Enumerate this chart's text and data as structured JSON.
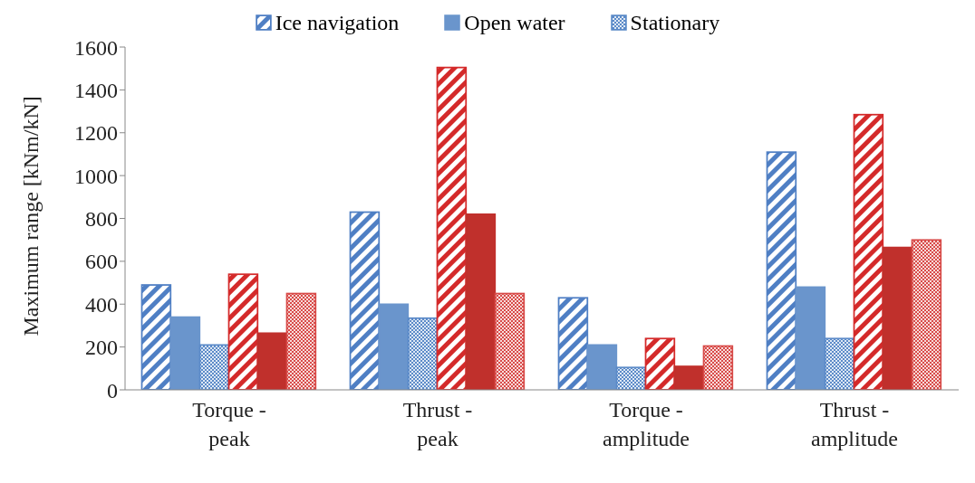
{
  "chart_data": {
    "type": "bar",
    "ylabel": "Maximum range [kNm/kN]",
    "categories": [
      "Torque - peak",
      "Thrust - peak",
      "Torque - amplitude",
      "Thrust - amplitude"
    ],
    "ylim": [
      0,
      1600
    ],
    "yticks": [
      0,
      200,
      400,
      600,
      800,
      1000,
      1200,
      1400,
      1600
    ],
    "grid": false,
    "legend": "top",
    "series": [
      {
        "name": "Ice navigation",
        "color": "#4f7fc4",
        "values": [
          490,
          830,
          430,
          1110
        ]
      },
      {
        "name": "Open water",
        "color": "#6a95cc",
        "values": [
          340,
          400,
          210,
          480
        ]
      },
      {
        "name": "Stationary",
        "color": "#5b8ac8",
        "values": [
          210,
          335,
          105,
          240
        ]
      },
      {
        "color": "#d42a2a",
        "values": [
          540,
          1505,
          240,
          1285
        ]
      },
      {
        "color": "#c0302c",
        "values": [
          265,
          820,
          110,
          665
        ]
      },
      {
        "color": "#d84a48",
        "values": [
          450,
          450,
          205,
          700
        ]
      }
    ]
  }
}
